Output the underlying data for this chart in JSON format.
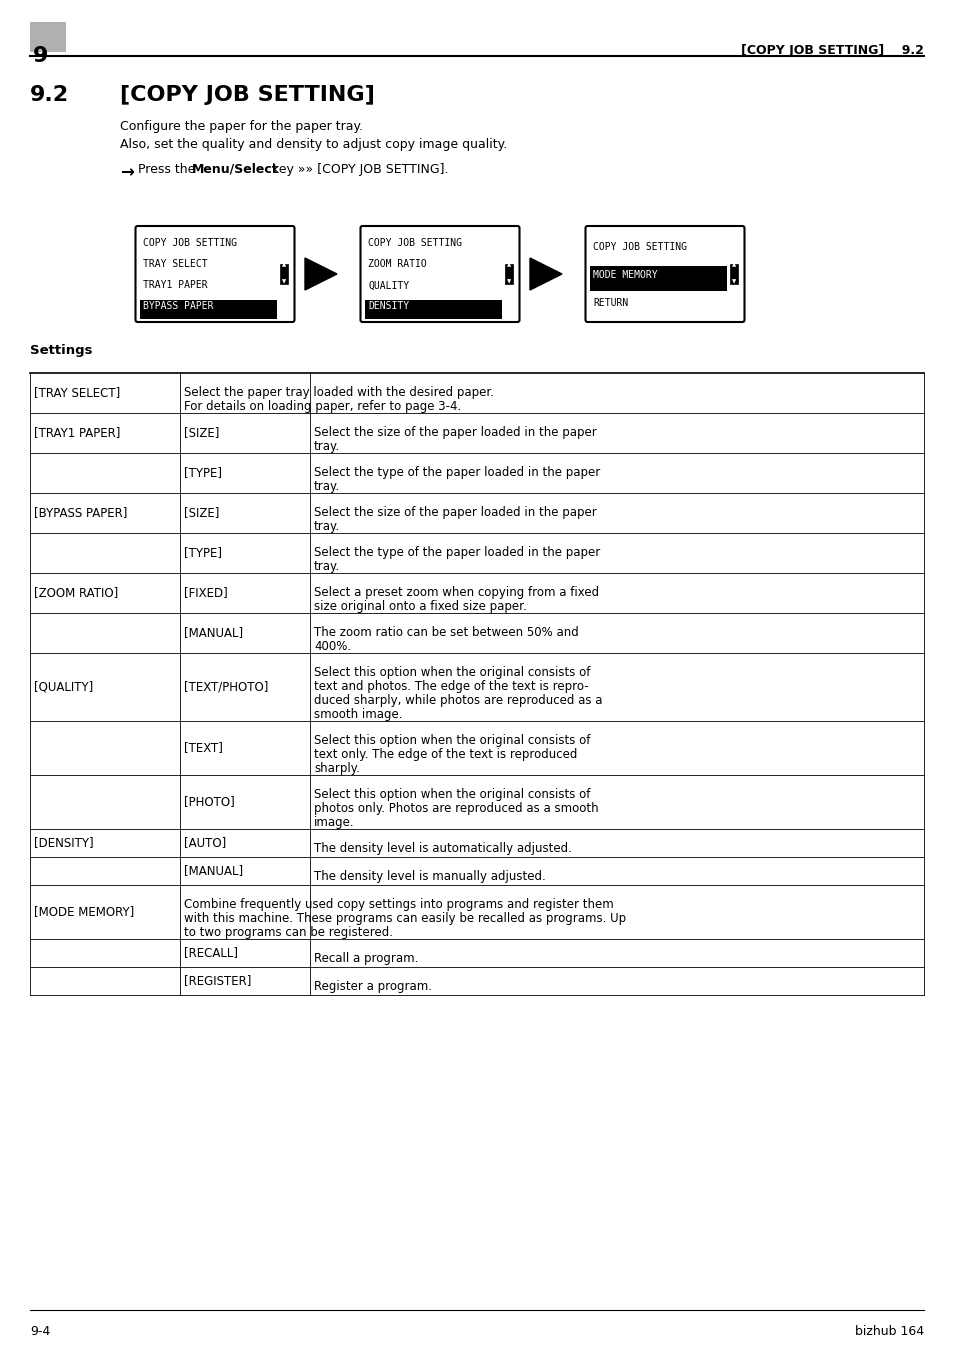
{
  "page_num": "9",
  "section": "9.2",
  "header_right": "[COPY JOB SETTING]",
  "header_section": "9.2",
  "title": "9.2    [COPY JOB SETTING]",
  "para1": "Configure the paper for the paper tray.",
  "para2": "Also, set the quality and density to adjust copy image quality.",
  "arrow_text": "Press the Menu/Select key »» [COPY JOB SETTING].",
  "screen1_lines": [
    "COPY JOB SETTING",
    "TRAY SELECT",
    "TRAY1 PAPER",
    "BYPASS PAPER"
  ],
  "screen1_highlight": 3,
  "screen2_lines": [
    "COPY JOB SETTING",
    "ZOOM RATIO",
    "QUALITY",
    "DENSITY"
  ],
  "screen2_highlight": 3,
  "screen3_lines": [
    "COPY JOB SETTING",
    "MODE MEMORY",
    "RETURN"
  ],
  "screen3_highlight": 1,
  "settings_header": "Settings",
  "table_rows": [
    {
      "col1": "[TRAY SELECT]",
      "col2": "",
      "col3": "Select the paper tray loaded with the desired paper.\nFor details on loading paper, refer to page 3-4."
    },
    {
      "col1": "[TRAY1 PAPER]",
      "col2": "[SIZE]",
      "col3": "Select the size of the paper loaded in the paper\ntray."
    },
    {
      "col1": "",
      "col2": "[TYPE]",
      "col3": "Select the type of the paper loaded in the paper\ntray."
    },
    {
      "col1": "[BYPASS PAPER]",
      "col2": "[SIZE]",
      "col3": "Select the size of the paper loaded in the paper\ntray."
    },
    {
      "col1": "",
      "col2": "[TYPE]",
      "col3": "Select the type of the paper loaded in the paper\ntray."
    },
    {
      "col1": "[ZOOM RATIO]",
      "col2": "[FIXED]",
      "col3": "Select a preset zoom when copying from a fixed\nsize original onto a fixed size paper."
    },
    {
      "col1": "",
      "col2": "[MANUAL]",
      "col3": "The zoom ratio can be set between 50% and\n400%."
    },
    {
      "col1": "[QUALITY]",
      "col2": "[TEXT/PHOTO]",
      "col3": "Select this option when the original consists of\ntext and photos. The edge of the text is repro-\nduced sharply, while photos are reproduced as a\nsmooth image."
    },
    {
      "col1": "",
      "col2": "[TEXT]",
      "col3": "Select this option when the original consists of\ntext only. The edge of the text is reproduced\nsharply."
    },
    {
      "col1": "",
      "col2": "[PHOTO]",
      "col3": "Select this option when the original consists of\nphotos only. Photos are reproduced as a smooth\nimage."
    },
    {
      "col1": "[DENSITY]",
      "col2": "[AUTO]",
      "col3": "The density level is automatically adjusted."
    },
    {
      "col1": "",
      "col2": "[MANUAL]",
      "col3": "The density level is manually adjusted."
    },
    {
      "col1": "[MODE MEMORY]",
      "col2": "",
      "col3": "Combine frequently used copy settings into programs and register them\nwith this machine. These programs can easily be recalled as programs. Up\nto two programs can be registered."
    },
    {
      "col1": "",
      "col2": "[RECALL]",
      "col3": "Recall a program."
    },
    {
      "col1": "",
      "col2": "[REGISTER]",
      "col3": "Register a program."
    }
  ],
  "footer_left": "9-4",
  "footer_right": "bizhub 164",
  "bg_color": "#ffffff",
  "text_color": "#000000",
  "header_bg": "#cccccc"
}
